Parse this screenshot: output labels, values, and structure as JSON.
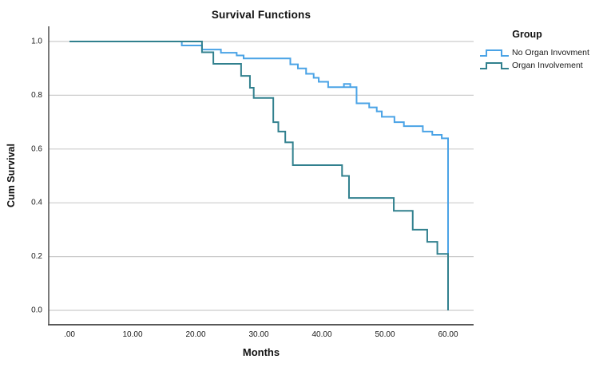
{
  "chart_data": {
    "type": "line",
    "subtype": "kaplan-meier-step",
    "title": "Survival Functions",
    "xlabel": "Months",
    "ylabel": "Cum Survival",
    "xlim": [
      0,
      60
    ],
    "ylim": [
      0.0,
      1.0
    ],
    "grid": "horizontal-only",
    "xticks": {
      "values": [
        0,
        10,
        20,
        30,
        40,
        50,
        60
      ],
      "labels": [
        ".00",
        "10.00",
        "20.00",
        "30.00",
        "40.00",
        "50.00",
        "60.00"
      ]
    },
    "yticks": {
      "values": [
        0.0,
        0.2,
        0.4,
        0.6,
        0.8,
        1.0
      ],
      "labels": [
        "0.0",
        "0.2",
        "0.4",
        "0.6",
        "0.8",
        "1.0"
      ]
    },
    "legend": {
      "title": "Group",
      "position": "top-right-outside"
    },
    "series": [
      {
        "name": "No Organ Invovment",
        "color": "#4aa3e6",
        "start": [
          0,
          1.0
        ],
        "steps": [
          [
            17.8,
            0.985
          ],
          [
            21.0,
            0.97
          ],
          [
            24.0,
            0.958
          ],
          [
            26.5,
            0.948
          ],
          [
            27.6,
            0.937
          ],
          [
            35.0,
            0.915
          ],
          [
            36.2,
            0.9
          ],
          [
            37.5,
            0.88
          ],
          [
            38.7,
            0.865
          ],
          [
            39.5,
            0.85
          ],
          [
            41.0,
            0.83
          ],
          [
            45.5,
            0.77
          ],
          [
            47.5,
            0.755
          ],
          [
            48.7,
            0.74
          ],
          [
            49.5,
            0.72
          ],
          [
            51.5,
            0.7
          ],
          [
            53.0,
            0.685
          ],
          [
            56.0,
            0.665
          ],
          [
            57.5,
            0.653
          ],
          [
            59.0,
            0.64
          ],
          [
            60.0,
            0.0
          ]
        ],
        "censor_marks": [
          {
            "t": 44.0,
            "v": 0.83
          }
        ]
      },
      {
        "name": "Organ Involvement",
        "color": "#31808e",
        "start": [
          0,
          1.0
        ],
        "steps": [
          [
            21.0,
            0.96
          ],
          [
            22.8,
            0.917
          ],
          [
            27.2,
            0.872
          ],
          [
            28.6,
            0.828
          ],
          [
            29.2,
            0.79
          ],
          [
            32.3,
            0.7
          ],
          [
            33.1,
            0.665
          ],
          [
            34.2,
            0.625
          ],
          [
            35.4,
            0.54
          ],
          [
            43.2,
            0.5
          ],
          [
            44.3,
            0.418
          ],
          [
            51.4,
            0.37
          ],
          [
            54.4,
            0.3
          ],
          [
            56.7,
            0.255
          ],
          [
            58.3,
            0.21
          ],
          [
            60.0,
            0.0
          ]
        ],
        "censor_marks": []
      }
    ]
  },
  "style_colors": {
    "gridline": "#cccccc",
    "axis_line": "#595959",
    "tick_label": "#1a1a1a"
  }
}
